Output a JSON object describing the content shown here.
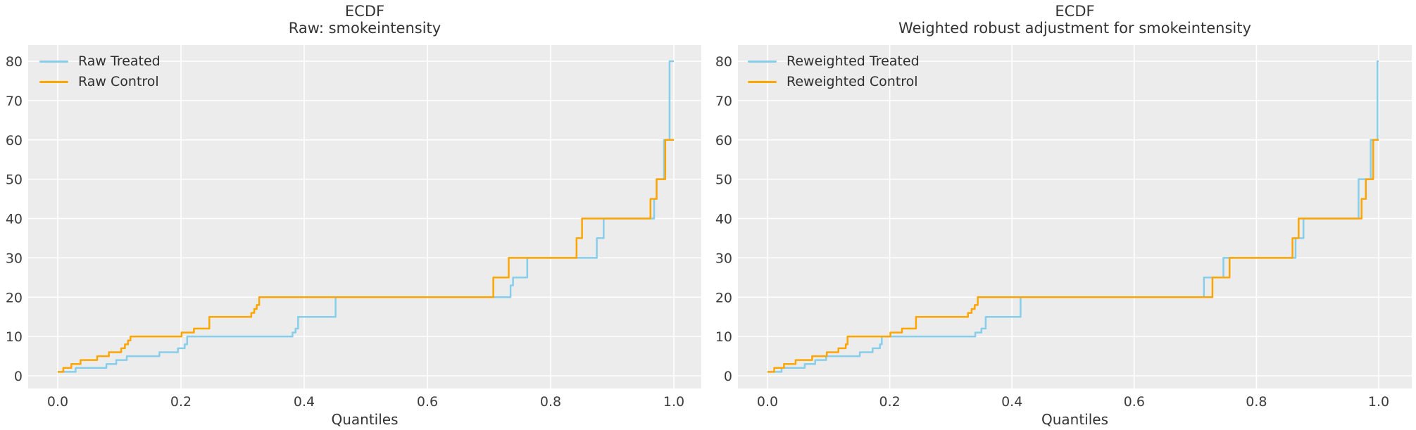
{
  "figure": {
    "panels": [
      {
        "title_lines": [
          "ECDF",
          "Raw: smokeintensity"
        ],
        "legend": [
          {
            "label": "Raw Treated",
            "color": "#87CEEB"
          },
          {
            "label": "Raw Control",
            "color": "#FFA500"
          }
        ]
      },
      {
        "title_lines": [
          "ECDF",
          "Weighted robust adjustment for smokeintensity"
        ],
        "legend": [
          {
            "label": "Reweighted Treated",
            "color": "#87CEEB"
          },
          {
            "label": "Reweighted Control",
            "color": "#FFA500"
          }
        ]
      }
    ],
    "colors": {
      "treated_line": "#87CEEB",
      "control_line": "#FFA500",
      "plot_background": "#ECECEC",
      "grid_line": "#FFFFFF",
      "tick_text": "#3d3d3d",
      "title_text": "#343434"
    }
  },
  "chart_data": [
    {
      "type": "line",
      "subtype": "quantile-step (ECDF)",
      "title": "ECDF\nRaw: smokeintensity",
      "xlabel": "Quantiles",
      "ylabel": "",
      "xlim": [
        -0.048,
        1.045
      ],
      "ylim": [
        -3.2,
        84.1
      ],
      "x_ticks": [
        "0.0",
        "0.2",
        "0.4",
        "0.6",
        "0.8",
        "1.0"
      ],
      "y_ticks": [
        0,
        10,
        20,
        30,
        40,
        50,
        60,
        70,
        80
      ],
      "grid": true,
      "legend_position": "upper left",
      "series": [
        {
          "name": "Raw Treated",
          "color": "#87CEEB",
          "step_points": [
            [
              0.0,
              1
            ],
            [
              0.029,
              2
            ],
            [
              0.079,
              3
            ],
            [
              0.095,
              4
            ],
            [
              0.112,
              5
            ],
            [
              0.165,
              6
            ],
            [
              0.195,
              7
            ],
            [
              0.206,
              8
            ],
            [
              0.21,
              10
            ],
            [
              0.381,
              11
            ],
            [
              0.386,
              12
            ],
            [
              0.39,
              15
            ],
            [
              0.451,
              20
            ],
            [
              0.735,
              23
            ],
            [
              0.739,
              25
            ],
            [
              0.762,
              30
            ],
            [
              0.875,
              35
            ],
            [
              0.886,
              40
            ],
            [
              0.968,
              45
            ],
            [
              0.972,
              50
            ],
            [
              0.984,
              60
            ],
            [
              0.993,
              80
            ],
            [
              1.0,
              80
            ]
          ]
        },
        {
          "name": "Raw Control",
          "color": "#FFA500",
          "step_points": [
            [
              0.0,
              1
            ],
            [
              0.009,
              2
            ],
            [
              0.022,
              3
            ],
            [
              0.037,
              4
            ],
            [
              0.064,
              5
            ],
            [
              0.083,
              6
            ],
            [
              0.103,
              7
            ],
            [
              0.109,
              8
            ],
            [
              0.114,
              9
            ],
            [
              0.118,
              10
            ],
            [
              0.201,
              11
            ],
            [
              0.221,
              12
            ],
            [
              0.246,
              15
            ],
            [
              0.314,
              16
            ],
            [
              0.319,
              17
            ],
            [
              0.323,
              18
            ],
            [
              0.327,
              20
            ],
            [
              0.707,
              25
            ],
            [
              0.732,
              30
            ],
            [
              0.842,
              35
            ],
            [
              0.851,
              40
            ],
            [
              0.962,
              45
            ],
            [
              0.972,
              50
            ],
            [
              0.986,
              60
            ],
            [
              1.0,
              60
            ]
          ]
        }
      ]
    },
    {
      "type": "line",
      "subtype": "quantile-step (ECDF)",
      "title": "ECDF\nWeighted robust adjustment for smokeintensity",
      "xlabel": "Quantiles",
      "ylabel": "",
      "xlim": [
        -0.048,
        1.054
      ],
      "ylim": [
        -3.2,
        84.1
      ],
      "x_ticks": [
        "0.0",
        "0.2",
        "0.4",
        "0.6",
        "0.8",
        "1.0"
      ],
      "y_ticks": [
        0,
        10,
        20,
        30,
        40,
        50,
        60,
        70,
        80
      ],
      "grid": true,
      "legend_position": "upper left",
      "series": [
        {
          "name": "Reweighted Treated",
          "color": "#87CEEB",
          "step_points": [
            [
              0.0,
              1
            ],
            [
              0.023,
              2
            ],
            [
              0.061,
              3
            ],
            [
              0.078,
              4
            ],
            [
              0.096,
              5
            ],
            [
              0.151,
              6
            ],
            [
              0.172,
              7
            ],
            [
              0.184,
              8
            ],
            [
              0.187,
              10
            ],
            [
              0.34,
              11
            ],
            [
              0.35,
              12
            ],
            [
              0.357,
              15
            ],
            [
              0.414,
              20
            ],
            [
              0.714,
              25
            ],
            [
              0.746,
              30
            ],
            [
              0.864,
              35
            ],
            [
              0.877,
              40
            ],
            [
              0.967,
              50
            ],
            [
              0.987,
              60
            ],
            [
              0.998,
              80
            ],
            [
              1.0,
              80
            ]
          ]
        },
        {
          "name": "Reweighted Control",
          "color": "#FFA500",
          "step_points": [
            [
              0.0,
              1
            ],
            [
              0.011,
              2
            ],
            [
              0.027,
              3
            ],
            [
              0.046,
              4
            ],
            [
              0.073,
              5
            ],
            [
              0.097,
              6
            ],
            [
              0.116,
              7
            ],
            [
              0.128,
              8
            ],
            [
              0.131,
              10
            ],
            [
              0.201,
              11
            ],
            [
              0.22,
              12
            ],
            [
              0.243,
              15
            ],
            [
              0.328,
              16
            ],
            [
              0.334,
              17
            ],
            [
              0.339,
              18
            ],
            [
              0.344,
              20
            ],
            [
              0.728,
              25
            ],
            [
              0.756,
              30
            ],
            [
              0.859,
              35
            ],
            [
              0.869,
              40
            ],
            [
              0.972,
              45
            ],
            [
              0.979,
              50
            ],
            [
              0.991,
              60
            ],
            [
              1.0,
              60
            ]
          ]
        }
      ]
    }
  ]
}
